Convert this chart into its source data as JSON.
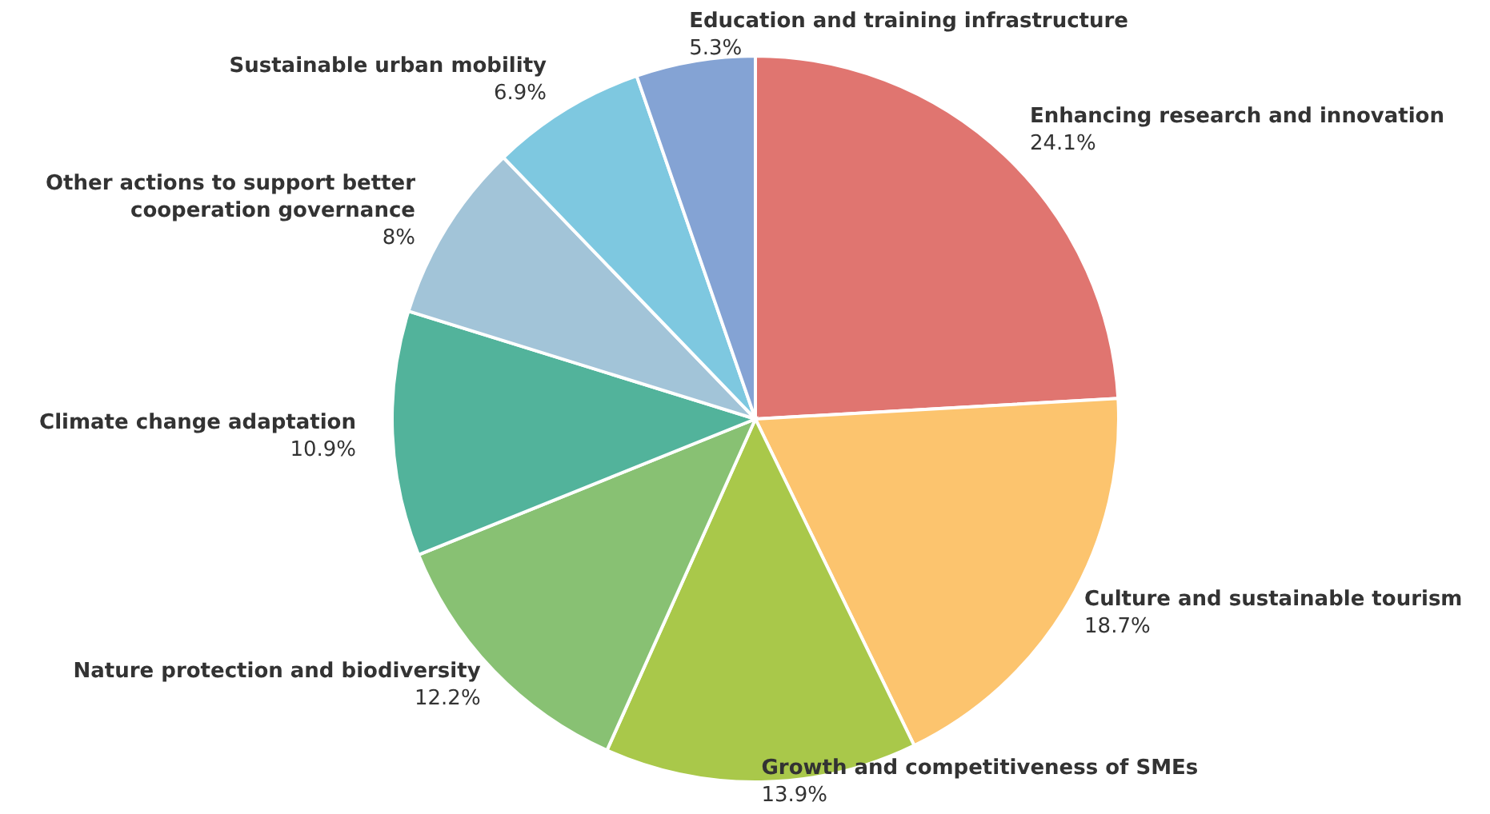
{
  "chart_data": {
    "type": "pie",
    "categories": [
      "Enhancing research and innovation",
      "Culture and sustainable tourism",
      "Growth and competitiveness of SMEs",
      "Nature protection and biodiversity",
      "Climate change adaptation",
      "Other actions to support better cooperation governance",
      "Sustainable urban mobility",
      "Education and training infrastructure"
    ],
    "values": [
      24.1,
      18.7,
      13.9,
      12.2,
      10.9,
      8,
      6.9,
      5.3
    ],
    "value_labels": [
      "24.1%",
      "18.7%",
      "13.9%",
      "12.2%",
      "10.9%",
      "8%",
      "6.9%",
      "5.3%"
    ],
    "colors": [
      "#e07570",
      "#fcc46e",
      "#a9c84a",
      "#88c173",
      "#52b39b",
      "#a2c4d8",
      "#7ec8e0",
      "#84a3d4"
    ]
  }
}
